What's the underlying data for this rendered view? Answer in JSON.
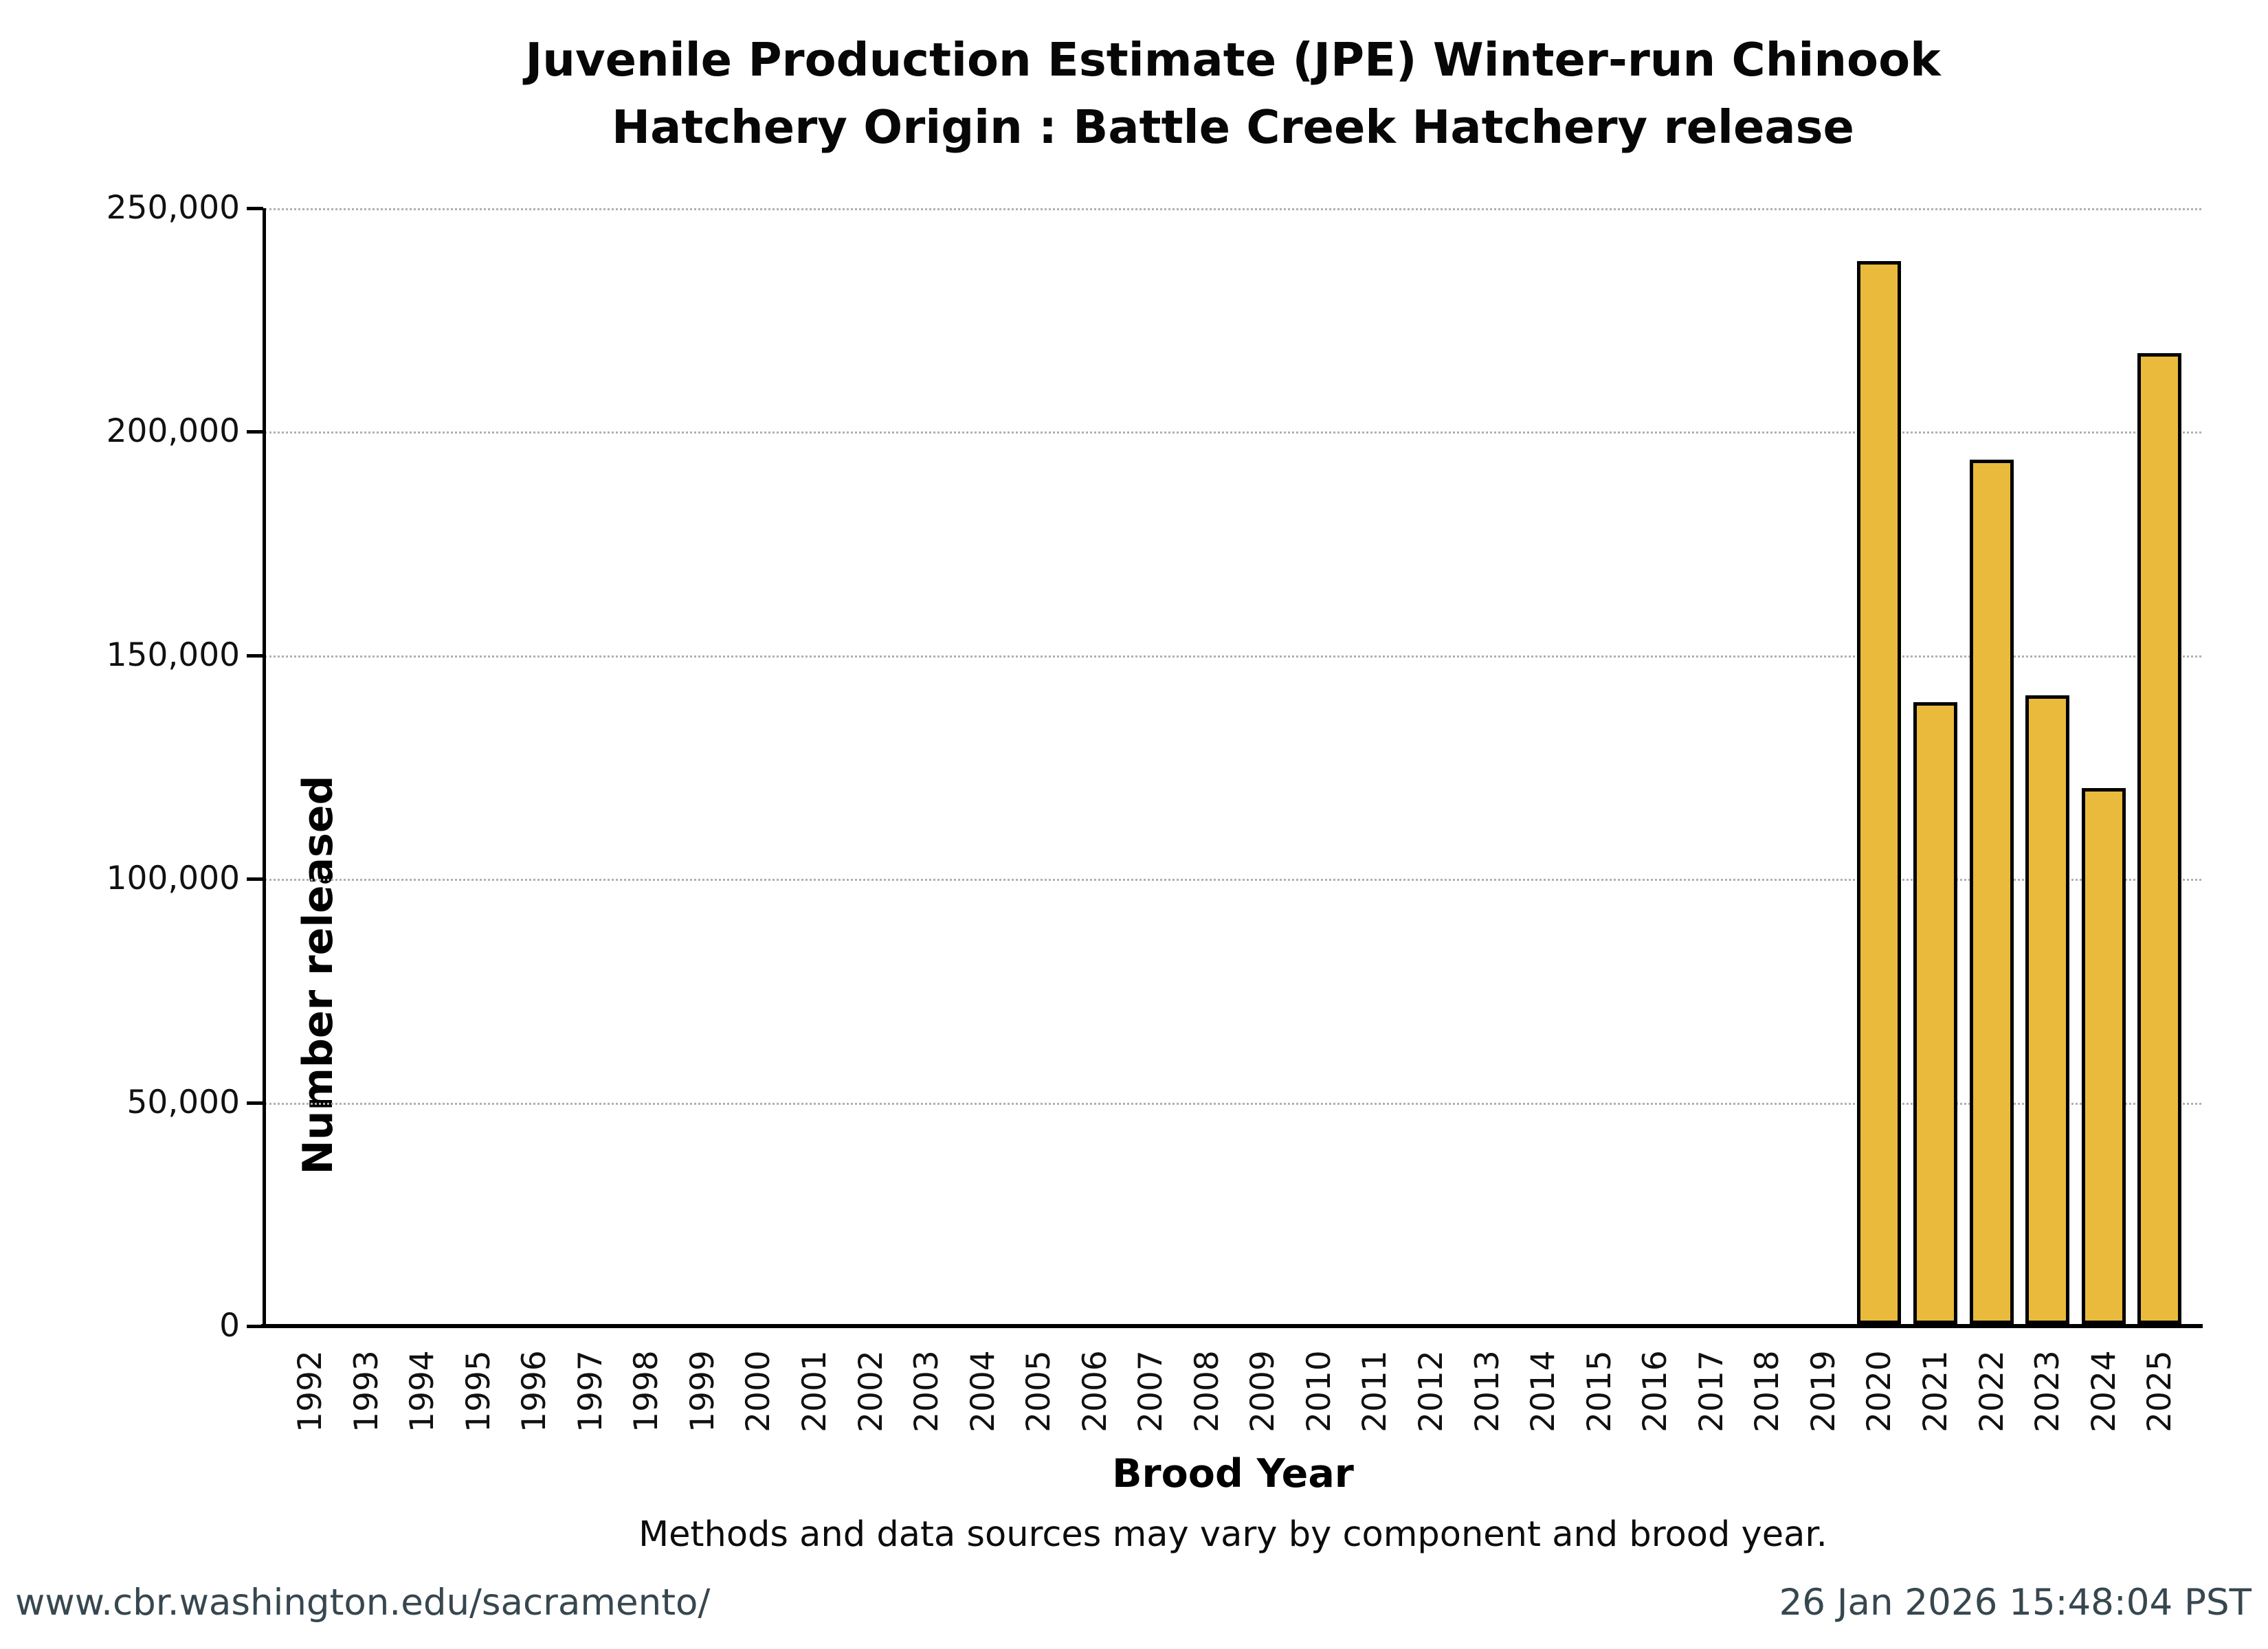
{
  "page": {
    "title_line1": "Juvenile Production Estimate (JPE) Winter-run Chinook",
    "title_line2": "Hatchery Origin : Battle Creek Hatchery release",
    "footnote": "Methods and data sources may vary by component and brood year.",
    "footer_left": "www.cbr.washington.edu/sacramento/",
    "footer_right": "26 Jan 2026 15:48:04 PST"
  },
  "chart_data": {
    "type": "bar",
    "title": "Juvenile Production Estimate (JPE) Winter-run Chinook — Hatchery Origin : Battle Creek Hatchery release",
    "xlabel": "Brood Year",
    "ylabel": "Number released",
    "categories": [
      "1992",
      "1993",
      "1994",
      "1995",
      "1996",
      "1997",
      "1998",
      "1999",
      "2000",
      "2001",
      "2002",
      "2003",
      "2004",
      "2005",
      "2006",
      "2007",
      "2008",
      "2009",
      "2010",
      "2011",
      "2012",
      "2013",
      "2014",
      "2015",
      "2016",
      "2017",
      "2018",
      "2019",
      "2020",
      "2021",
      "2022",
      "2023",
      "2024",
      "2025"
    ],
    "values": [
      null,
      null,
      null,
      null,
      null,
      null,
      null,
      null,
      null,
      null,
      null,
      null,
      null,
      null,
      null,
      null,
      null,
      null,
      null,
      null,
      null,
      null,
      null,
      null,
      null,
      null,
      null,
      null,
      237700,
      139000,
      193300,
      140600,
      119900,
      217100
    ],
    "ylim": [
      0,
      250000
    ],
    "ytick_interval": 50000,
    "ytick_labels": [
      "0",
      "50,000",
      "100,000",
      "150,000",
      "200,000",
      "250,000"
    ],
    "grid": "horizontal-dotted",
    "legend_position": "none",
    "bar_color": "#e9ba3c",
    "bar_edge_color": "#000000"
  },
  "colors": {
    "background": "#ffffff",
    "grid": "#b0b0b0",
    "axis": "#000000",
    "footer_text": "#37474f"
  }
}
